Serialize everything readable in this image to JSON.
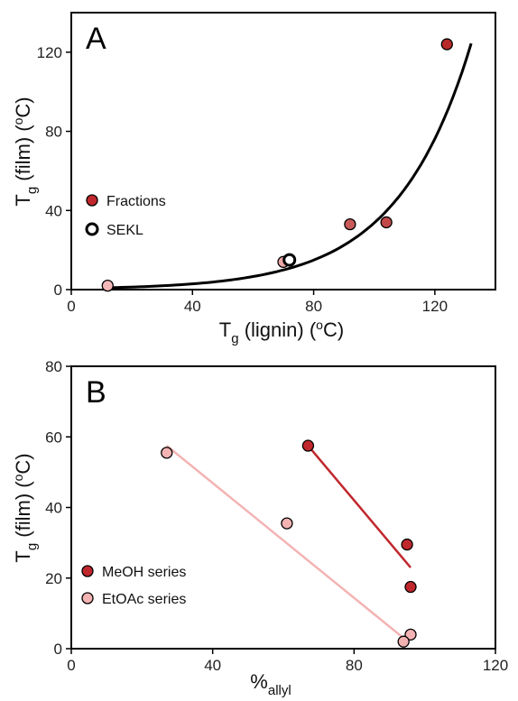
{
  "chart_data": [
    {
      "type": "scatter",
      "panel_label": "A",
      "xlabel": {
        "base": "T",
        "sub": "g",
        "rest": " (lignin) (",
        "sup": "o",
        "end": "C)"
      },
      "ylabel": {
        "base": "T",
        "sub": "g",
        "rest": " (film) (",
        "sup": "o",
        "end": "C)"
      },
      "xlim": [
        0,
        140
      ],
      "ylim": [
        0,
        140
      ],
      "xticks": [
        0,
        40,
        80,
        120
      ],
      "yticks": [
        0,
        40,
        80,
        120
      ],
      "xtick_labels": [
        "0",
        "40",
        "80",
        "120"
      ],
      "ytick_labels": [
        "0",
        "40",
        "80",
        "120"
      ],
      "grid": false,
      "legend_position": "middle-left",
      "series": [
        {
          "name": "Fractions",
          "legend_color": "#c0272d",
          "points": [
            {
              "x": 12,
              "y": 2,
              "color": "#f4b8b8"
            },
            {
              "x": 70,
              "y": 14,
              "color": "#f0a7a7"
            },
            {
              "x": 92,
              "y": 33,
              "color": "#c85a5a"
            },
            {
              "x": 104,
              "y": 34,
              "color": "#c24848"
            },
            {
              "x": 124,
              "y": 124,
              "color": "#b82a2a"
            }
          ]
        },
        {
          "name": "SEKL",
          "legend_color": "#ffffff",
          "points": [
            {
              "x": 72,
              "y": 15,
              "color": "#ffffff"
            }
          ]
        }
      ],
      "fit": {
        "type": "exponential",
        "a": 0.57,
        "b": 0.0408,
        "x_range": [
          12,
          132
        ],
        "color": "#000000"
      }
    },
    {
      "type": "scatter",
      "panel_label": "B",
      "xlabel": {
        "base": "%",
        "sub": "allyl"
      },
      "ylabel": {
        "base": "T",
        "sub": "g",
        "rest": " (film) (",
        "sup": "o",
        "end": "C)"
      },
      "xlim": [
        0,
        120
      ],
      "ylim": [
        0,
        80
      ],
      "xticks": [
        0,
        40,
        80,
        120
      ],
      "yticks": [
        0,
        20,
        40,
        60,
        80
      ],
      "xtick_labels": [
        "0",
        "40",
        "80",
        "120"
      ],
      "ytick_labels": [
        "0",
        "20",
        "40",
        "60",
        "80"
      ],
      "grid": false,
      "legend_position": "bottom-left",
      "series": [
        {
          "name": "MeOH series",
          "color": "#c0272d",
          "points": [
            {
              "x": 67,
              "y": 57.5
            },
            {
              "x": 95,
              "y": 29.5
            },
            {
              "x": 96,
              "y": 17.5
            }
          ],
          "fit_line": {
            "x": [
              67,
              96
            ],
            "y": [
              57.5,
              23
            ]
          }
        },
        {
          "name": "EtOAc series",
          "color": "#f4b3b3",
          "points": [
            {
              "x": 27,
              "y": 55.5
            },
            {
              "x": 61,
              "y": 35.5
            },
            {
              "x": 96,
              "y": 4
            },
            {
              "x": 94,
              "y": 2
            }
          ],
          "fit_line": {
            "x": [
              27,
              94
            ],
            "y": [
              57.5,
              3
            ]
          }
        }
      ]
    }
  ]
}
